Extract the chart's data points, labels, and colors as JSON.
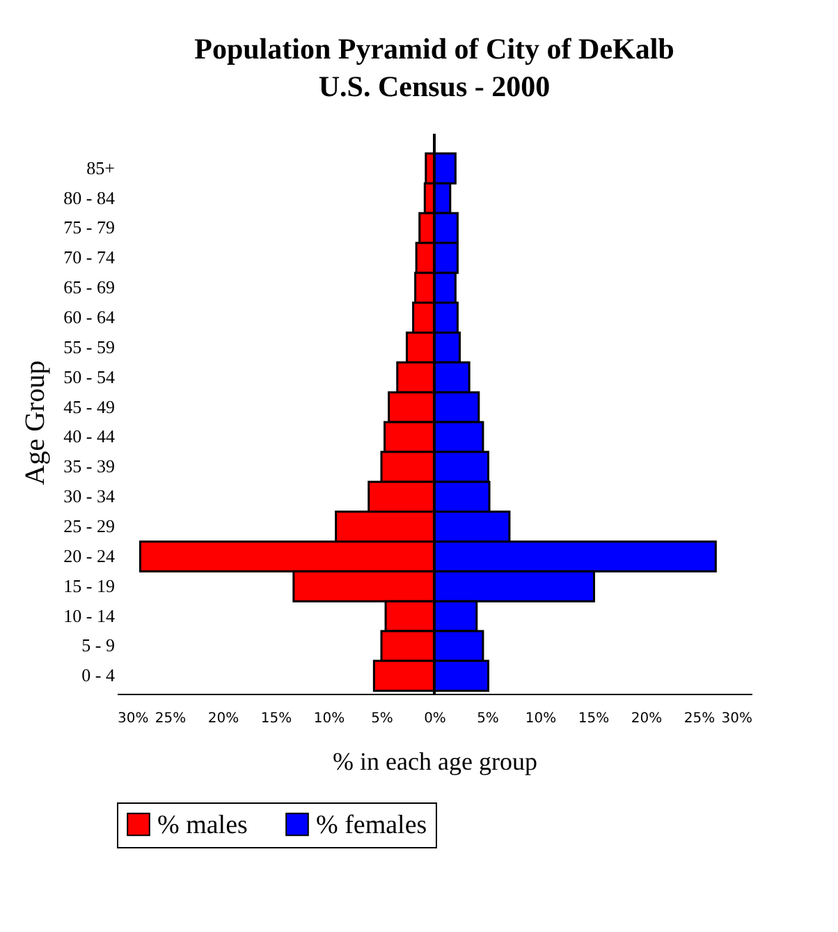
{
  "chart_data": {
    "type": "bar",
    "orientation": "horizontal",
    "title": "Population Pyramid of City of DeKalb",
    "subtitle": "U.S. Census - 2000",
    "xlabel": "% in each age group",
    "ylabel": "Age Group",
    "categories": [
      "85+",
      "80 - 84",
      "75 - 79",
      "70 - 74",
      "65 - 69",
      "60 - 64",
      "55 - 59",
      "50 - 54",
      "45 - 49",
      "40 - 44",
      "35 - 39",
      "30 - 34",
      "25 - 29",
      "20 - 24",
      "15 - 19",
      "10 - 14",
      "5 - 9",
      "0 - 4"
    ],
    "series": [
      {
        "name": "% males",
        "color": "#ff0000",
        "values": [
          -0.8,
          -0.9,
          -1.4,
          -1.7,
          -1.8,
          -2.0,
          -2.6,
          -3.5,
          -4.3,
          -4.7,
          -5.0,
          -6.2,
          -9.3,
          -27.8,
          -13.3,
          -4.6,
          -5.0,
          -5.7
        ]
      },
      {
        "name": "% females",
        "color": "#0000ff",
        "values": [
          2.0,
          1.5,
          2.2,
          2.2,
          2.0,
          2.2,
          2.4,
          3.3,
          4.2,
          4.6,
          5.1,
          5.2,
          7.1,
          26.6,
          15.1,
          4.0,
          4.6,
          5.1
        ]
      }
    ],
    "xlim": [
      -30,
      30
    ],
    "xticks": [
      {
        "value": -30,
        "label": "30%"
      },
      {
        "value": -25,
        "label": "25%"
      },
      {
        "value": -20,
        "label": "20%"
      },
      {
        "value": -15,
        "label": "15%"
      },
      {
        "value": -10,
        "label": "10%"
      },
      {
        "value": -5,
        "label": "5%"
      },
      {
        "value": 0,
        "label": "0%"
      },
      {
        "value": 5,
        "label": "5%"
      },
      {
        "value": 10,
        "label": "10%"
      },
      {
        "value": 15,
        "label": "15%"
      },
      {
        "value": 20,
        "label": "20%"
      },
      {
        "value": 25,
        "label": "25%"
      },
      {
        "value": 30,
        "label": "30%"
      }
    ],
    "ref_lines": [
      {
        "axis": "x",
        "value": 0,
        "color": "#000000"
      }
    ],
    "grid": false,
    "legend": "bottom",
    "stacked": true
  }
}
